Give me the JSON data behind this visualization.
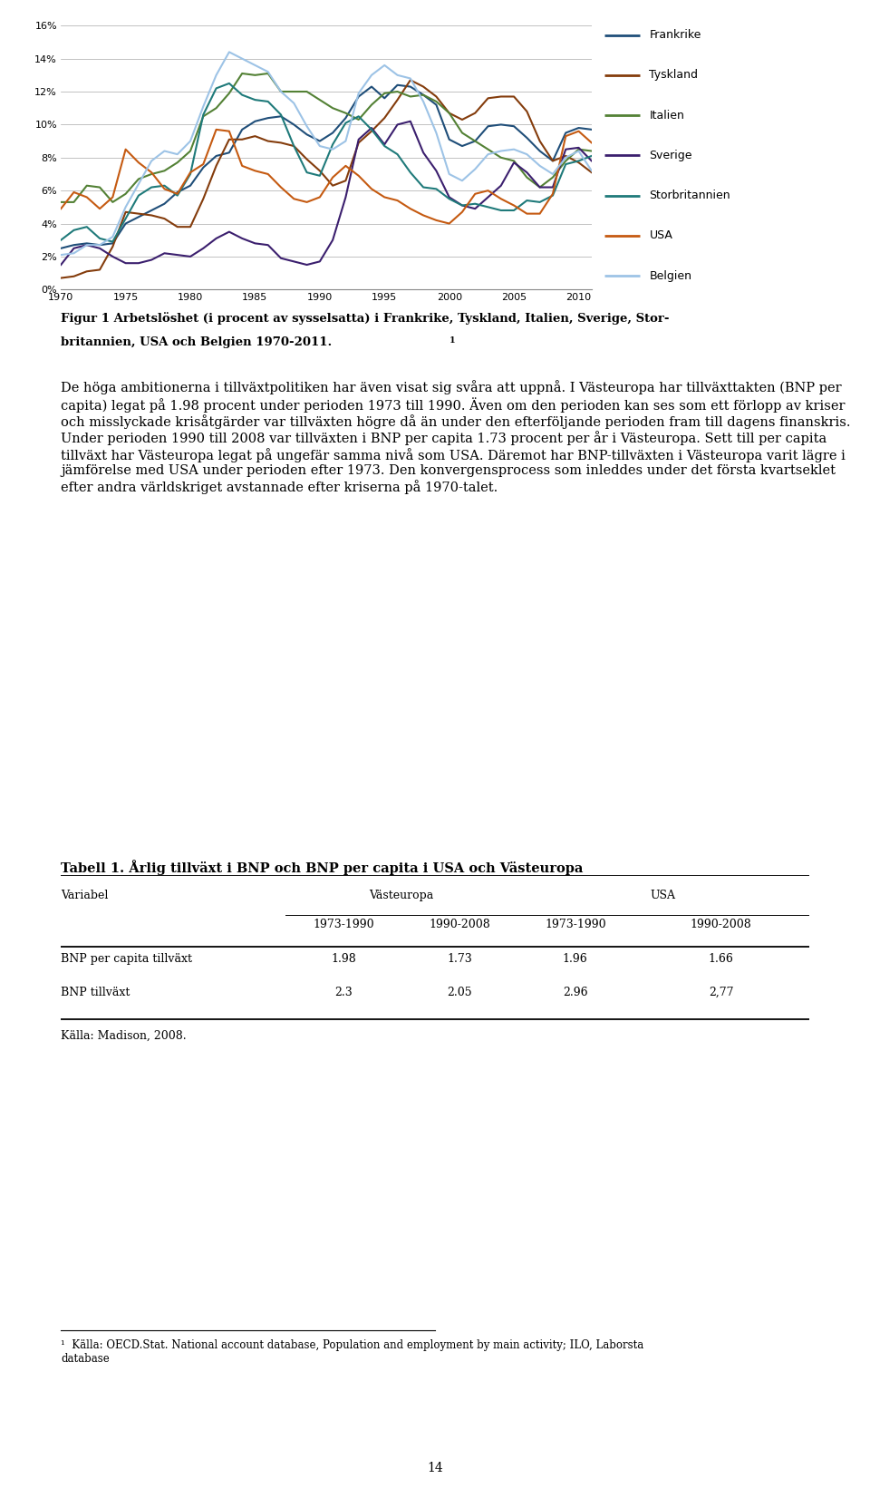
{
  "years": [
    1970,
    1971,
    1972,
    1973,
    1974,
    1975,
    1976,
    1977,
    1978,
    1979,
    1980,
    1981,
    1982,
    1983,
    1984,
    1985,
    1986,
    1987,
    1988,
    1989,
    1990,
    1991,
    1992,
    1993,
    1994,
    1995,
    1996,
    1997,
    1998,
    1999,
    2000,
    2001,
    2002,
    2003,
    2004,
    2005,
    2006,
    2007,
    2008,
    2009,
    2010,
    2011
  ],
  "Frankrike": [
    2.5,
    2.7,
    2.8,
    2.7,
    2.8,
    4.0,
    4.4,
    4.8,
    5.2,
    5.9,
    6.3,
    7.4,
    8.1,
    8.3,
    9.7,
    10.2,
    10.4,
    10.5,
    10.0,
    9.4,
    9.0,
    9.5,
    10.4,
    11.7,
    12.3,
    11.6,
    12.4,
    12.3,
    11.8,
    11.2,
    9.1,
    8.7,
    9.0,
    9.9,
    10.0,
    9.9,
    9.2,
    8.4,
    7.8,
    9.5,
    9.8,
    9.7
  ],
  "Tyskland": [
    0.7,
    0.8,
    1.1,
    1.2,
    2.6,
    4.7,
    4.6,
    4.5,
    4.3,
    3.8,
    3.8,
    5.5,
    7.5,
    9.1,
    9.1,
    9.3,
    9.0,
    8.9,
    8.7,
    7.9,
    7.2,
    6.3,
    6.6,
    8.9,
    9.6,
    10.4,
    11.5,
    12.7,
    12.3,
    11.7,
    10.7,
    10.3,
    10.7,
    11.6,
    11.7,
    11.7,
    10.8,
    9.0,
    7.8,
    8.1,
    7.7,
    7.1
  ],
  "Italien": [
    5.3,
    5.3,
    6.3,
    6.2,
    5.3,
    5.8,
    6.7,
    7.0,
    7.2,
    7.7,
    8.4,
    10.5,
    11.0,
    11.9,
    13.1,
    13.0,
    13.1,
    12.0,
    12.0,
    12.0,
    11.5,
    11.0,
    10.7,
    10.3,
    11.2,
    11.9,
    12.0,
    11.7,
    11.8,
    11.4,
    10.7,
    9.5,
    9.0,
    8.5,
    8.0,
    7.8,
    6.8,
    6.2,
    6.8,
    7.8,
    8.5,
    8.4
  ],
  "Sverige": [
    1.5,
    2.5,
    2.7,
    2.5,
    2.0,
    1.6,
    1.6,
    1.8,
    2.2,
    2.1,
    2.0,
    2.5,
    3.1,
    3.5,
    3.1,
    2.8,
    2.7,
    1.9,
    1.7,
    1.5,
    1.7,
    3.0,
    5.6,
    9.1,
    9.8,
    8.8,
    10.0,
    10.2,
    8.3,
    7.2,
    5.6,
    5.1,
    4.9,
    5.6,
    6.3,
    7.7,
    7.1,
    6.2,
    6.2,
    8.5,
    8.6,
    7.8
  ],
  "Storbritannien": [
    3.0,
    3.6,
    3.8,
    3.1,
    2.9,
    4.3,
    5.7,
    6.2,
    6.3,
    5.7,
    7.0,
    10.6,
    12.2,
    12.5,
    11.8,
    11.5,
    11.4,
    10.6,
    8.7,
    7.1,
    6.9,
    8.8,
    10.1,
    10.5,
    9.7,
    8.7,
    8.2,
    7.1,
    6.2,
    6.1,
    5.5,
    5.1,
    5.2,
    5.0,
    4.8,
    4.8,
    5.4,
    5.3,
    5.7,
    7.6,
    7.8,
    8.1
  ],
  "USA": [
    4.9,
    5.9,
    5.6,
    4.9,
    5.6,
    8.5,
    7.7,
    7.1,
    6.1,
    5.8,
    7.1,
    7.6,
    9.7,
    9.6,
    7.5,
    7.2,
    7.0,
    6.2,
    5.5,
    5.3,
    5.6,
    6.8,
    7.5,
    6.9,
    6.1,
    5.6,
    5.4,
    4.9,
    4.5,
    4.2,
    4.0,
    4.7,
    5.8,
    6.0,
    5.5,
    5.1,
    4.6,
    4.6,
    5.8,
    9.3,
    9.6,
    8.9
  ],
  "Belgien": [
    2.1,
    2.2,
    2.7,
    2.7,
    3.2,
    5.0,
    6.4,
    7.8,
    8.4,
    8.2,
    9.0,
    11.1,
    13.0,
    14.4,
    14.0,
    13.6,
    13.2,
    12.0,
    11.3,
    9.9,
    8.7,
    8.5,
    9.0,
    11.9,
    13.0,
    13.6,
    13.0,
    12.8,
    11.4,
    9.5,
    7.0,
    6.6,
    7.3,
    8.2,
    8.4,
    8.5,
    8.2,
    7.5,
    7.0,
    8.0,
    8.4,
    7.2
  ],
  "colors": {
    "Frankrike": "#1F4E79",
    "Tyskland": "#843C0C",
    "Italien": "#538135",
    "Sverige": "#3B1F6E",
    "Storbritannien": "#1F7A7A",
    "USA": "#C55A11",
    "Belgien": "#9DC3E6"
  },
  "series_names": [
    "Frankrike",
    "Tyskland",
    "Italien",
    "Sverige",
    "Storbritannien",
    "USA",
    "Belgien"
  ],
  "ylim": [
    0,
    16
  ],
  "yticks": [
    0,
    2,
    4,
    6,
    8,
    10,
    12,
    14,
    16
  ],
  "ytick_labels": [
    "0%",
    "2%",
    "4%",
    "6%",
    "8%",
    "10%",
    "12%",
    "14%",
    "16%"
  ],
  "xticks": [
    1970,
    1975,
    1980,
    1985,
    1990,
    1995,
    2000,
    2005,
    2010
  ],
  "caption_line1": "Figur 1 Arbetslöshet (i procent av sysselsatta) i Frankrike, Tyskland, Italien, Sverige, Stor-",
  "caption_line2": "britannien, USA och Belgien 1970-2011.",
  "caption_super": "1",
  "paragraph1": "De höga ambitionerna i tillväxtpolitiken har även visat sig svåra att uppnå. I Västeuropa har tillväxttakten (BNP per capita) legat på 1.98 procent under perioden 1973 till 1990. Även om den perioden kan ses som ett förlopp av kriser och misslyckade krisåtgärder var tillväxten högre då än under den efterföljande perioden fram till dagens finanskris. Under perioden 1990 till 2008 var tillväxten i BNP per capita 1.73 procent per år i Västeuropa. Sett till per capita tillväxt har Västeuropa legat på ungefär samma nivå som USA. Däremot har BNP-tillväxten i Västeuropa varit lägre i jämförelse med USA under perioden efter 1973. Den konvergensprocess som inleddes under det första kvartseklet efter andra världskriget avstannade efter kriserna på 1970-talet.",
  "table_title": "Tabell 1. Årlig tillväxt i BNP och BNP per capita i USA och Västeuropa",
  "table_sub_headers": [
    "1973-1990",
    "1990-2008",
    "1973-1990",
    "1990-2008"
  ],
  "table_rows": [
    [
      "BNP per capita tillväxt",
      "1.98",
      "1.73",
      "1.96",
      "1.66"
    ],
    [
      "BNP tillväxt",
      "2.3",
      "2.05",
      "2.96",
      "2,77"
    ]
  ],
  "table_source": "Källa: Madison, 2008.",
  "footnote_text": "Källa: OECD.Stat. National account database, Population and employment by main activity; ILO, Laborsta\ndatabase",
  "page_number": "14",
  "background_color": "#FFFFFF"
}
